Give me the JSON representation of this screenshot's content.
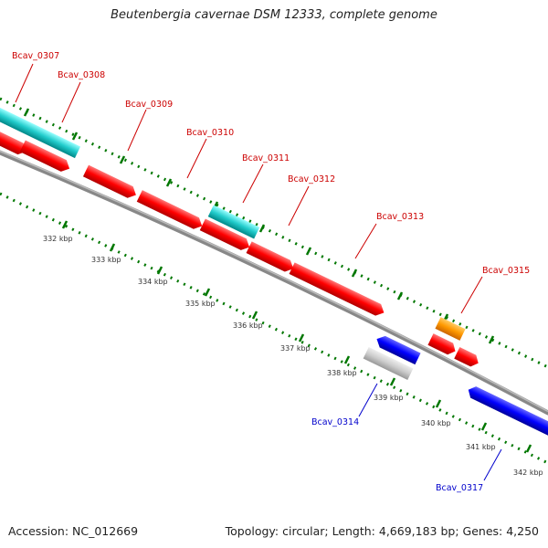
{
  "title": "Beutenbergia cavernae DSM 12333, complete genome",
  "footer": {
    "accession": "Accession: NC_012669",
    "summary": "Topology: circular; Length: 4,669,183 bp; Genes: 4,250"
  },
  "colors": {
    "forward_gene": "#ff0000",
    "reverse_gene": "#0000ff",
    "rna_gene": "#00cccc",
    "highlight_gene": "#ff9900",
    "pseudo_gene": "#cccccc",
    "backbone": "#888888",
    "ticks": "#007700",
    "forward_label": "#cc0000",
    "reverse_label": "#0000cc"
  },
  "scale": {
    "unit": "kbp",
    "labels": [
      "332 kbp",
      "333 kbp",
      "334 kbp",
      "335 kbp",
      "336 kbp",
      "337 kbp",
      "338 kbp",
      "339 kbp",
      "340 kbp",
      "341 kbp",
      "342 kbp"
    ]
  },
  "gene_labels": [
    {
      "text": "Bcav_0307",
      "strand": "forward"
    },
    {
      "text": "Bcav_0308",
      "strand": "forward"
    },
    {
      "text": "Bcav_0309",
      "strand": "forward"
    },
    {
      "text": "Bcav_0310",
      "strand": "forward"
    },
    {
      "text": "Bcav_0311",
      "strand": "forward"
    },
    {
      "text": "Bcav_0312",
      "strand": "forward"
    },
    {
      "text": "Bcav_0313",
      "strand": "forward"
    },
    {
      "text": "Bcav_0315",
      "strand": "forward"
    },
    {
      "text": "Bcav_0314",
      "strand": "reverse"
    },
    {
      "text": "Bcav_0317",
      "strand": "reverse"
    }
  ]
}
